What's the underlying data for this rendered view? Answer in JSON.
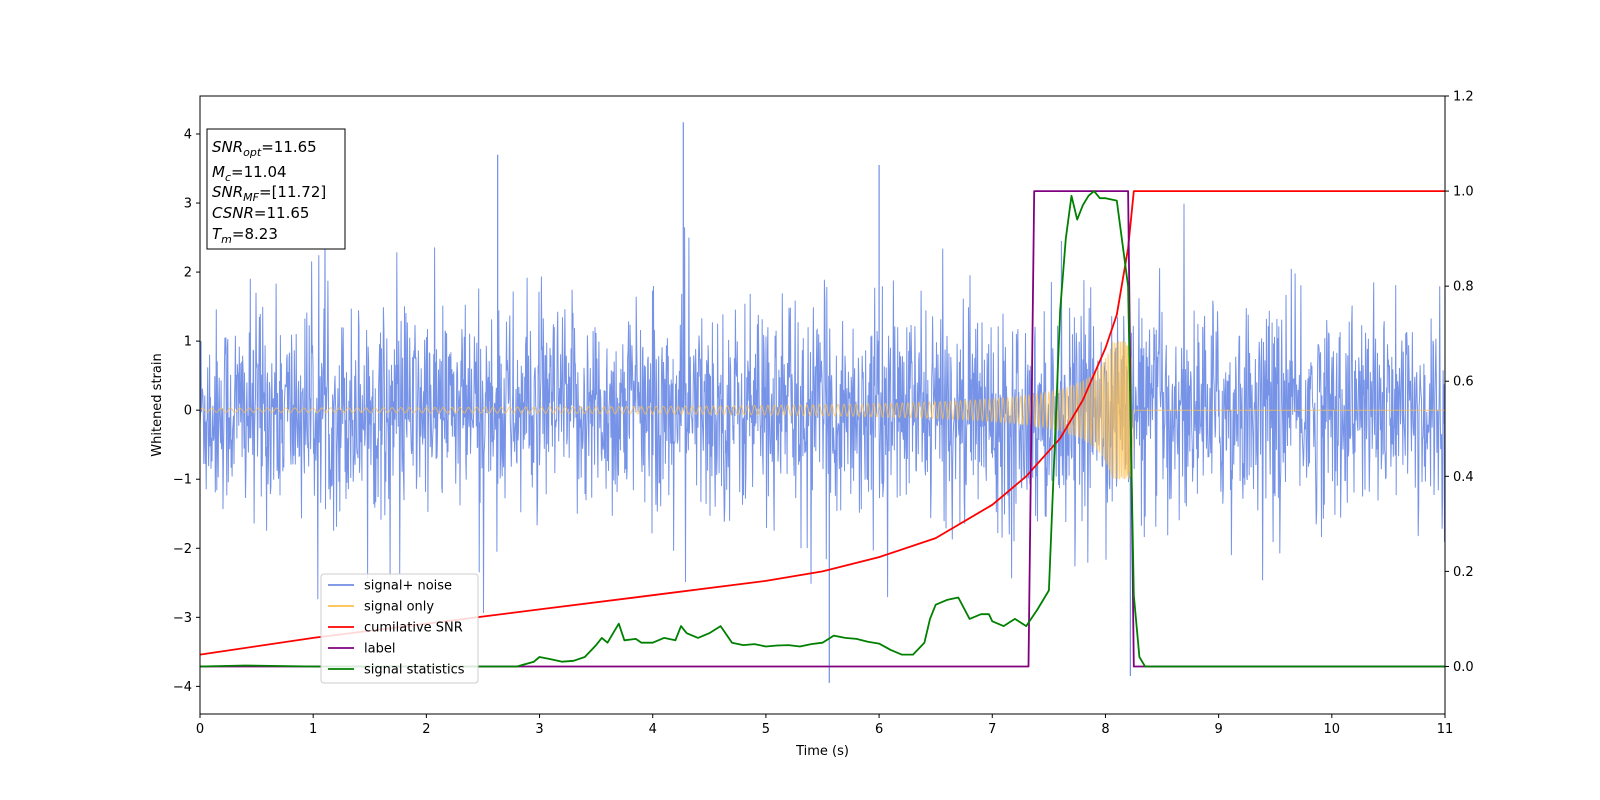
{
  "chart_data": {
    "type": "line",
    "xlabel": "Time (s)",
    "ylabel": "Whitened strain",
    "xlim": [
      0,
      11
    ],
    "ylim_left": [
      -4.4,
      4.55
    ],
    "ylim_right": [
      -0.1,
      1.2
    ],
    "x_ticks": [
      0,
      1,
      2,
      3,
      4,
      5,
      6,
      7,
      8,
      9,
      10,
      11
    ],
    "x_tick_labels": [
      "0",
      "1",
      "2",
      "3",
      "4",
      "5",
      "6",
      "7",
      "8",
      "9",
      "10",
      "11"
    ],
    "y_left_ticks": [
      -4,
      -3,
      -2,
      -1,
      0,
      1,
      2,
      3,
      4
    ],
    "y_left_tick_labels": [
      "−4",
      "−3",
      "−2",
      "−1",
      "0",
      "1",
      "2",
      "3",
      "4"
    ],
    "y_right_ticks": [
      0.0,
      0.2,
      0.4,
      0.6,
      0.8,
      1.0,
      1.2
    ],
    "y_right_tick_labels": [
      "0.0",
      "0.2",
      "0.4",
      "0.6",
      "0.8",
      "1.0",
      "1.2"
    ],
    "grid": false,
    "legend_position": "lower-left",
    "series": [
      {
        "name": "signal+ noise",
        "axis": "left",
        "color": "#6f8de6",
        "envelope": {
          "description": "dense whitened noise fluctuating roughly between -2 and 2 with spikes to about ±4",
          "typical_amplitude": 1.7,
          "max_spike": 4.17,
          "min_spike": -3.95
        }
      },
      {
        "name": "signal only",
        "axis": "left",
        "color": "#ffc04d",
        "chirp": {
          "start_time": 0,
          "merger_time": 8.23,
          "start_amplitude": 0.03,
          "peak_amplitude": 1.0
        }
      },
      {
        "name": "cumilative SNR",
        "axis": "right",
        "color": "#ff0000",
        "x": [
          0,
          1,
          2,
          3,
          4,
          5,
          5.5,
          6,
          6.5,
          7,
          7.3,
          7.6,
          7.8,
          8.0,
          8.1,
          8.2,
          8.25,
          9,
          10,
          11
        ],
        "y": [
          0.025,
          0.06,
          0.09,
          0.12,
          0.15,
          0.18,
          0.2,
          0.23,
          0.27,
          0.34,
          0.4,
          0.48,
          0.56,
          0.67,
          0.74,
          0.88,
          1.0,
          1.0,
          1.0,
          1.0
        ]
      },
      {
        "name": "label",
        "axis": "right",
        "color": "#800080",
        "x": [
          0,
          7.32,
          7.37,
          8.2,
          8.25,
          11
        ],
        "y": [
          0.0,
          0.0,
          1.0,
          1.0,
          0.0,
          0.0
        ]
      },
      {
        "name": "signal statistics",
        "axis": "right",
        "color": "#008000",
        "x": [
          0,
          0.4,
          1,
          2,
          2.8,
          2.95,
          3.0,
          3.1,
          3.2,
          3.3,
          3.4,
          3.5,
          3.55,
          3.6,
          3.65,
          3.7,
          3.75,
          3.85,
          3.9,
          4.0,
          4.1,
          4.2,
          4.25,
          4.3,
          4.4,
          4.5,
          4.6,
          4.7,
          4.8,
          4.9,
          5.0,
          5.1,
          5.2,
          5.3,
          5.4,
          5.5,
          5.6,
          5.7,
          5.8,
          5.9,
          6.0,
          6.1,
          6.2,
          6.3,
          6.4,
          6.45,
          6.5,
          6.6,
          6.7,
          6.8,
          6.9,
          6.97,
          7.0,
          7.1,
          7.2,
          7.3,
          7.4,
          7.5,
          7.6,
          7.65,
          7.7,
          7.75,
          7.8,
          7.85,
          7.9,
          7.95,
          8.0,
          8.1,
          8.2,
          8.25,
          8.3,
          8.35,
          8.5,
          9,
          10,
          11
        ],
        "y": [
          0.0,
          0.002,
          0.0,
          0.0,
          0.0,
          0.01,
          0.02,
          0.015,
          0.01,
          0.012,
          0.02,
          0.045,
          0.06,
          0.05,
          0.07,
          0.09,
          0.055,
          0.058,
          0.05,
          0.05,
          0.06,
          0.055,
          0.085,
          0.07,
          0.06,
          0.07,
          0.085,
          0.05,
          0.045,
          0.047,
          0.042,
          0.044,
          0.045,
          0.042,
          0.047,
          0.05,
          0.065,
          0.06,
          0.058,
          0.052,
          0.048,
          0.035,
          0.025,
          0.025,
          0.05,
          0.1,
          0.13,
          0.14,
          0.145,
          0.1,
          0.11,
          0.11,
          0.095,
          0.085,
          0.1,
          0.085,
          0.12,
          0.16,
          0.75,
          0.9,
          0.99,
          0.94,
          0.97,
          0.99,
          1.0,
          0.985,
          0.985,
          0.98,
          0.8,
          0.15,
          0.02,
          0.0,
          0.0,
          0.0,
          0.0,
          0.0
        ]
      }
    ],
    "annotation": {
      "lines": [
        {
          "name": "SNR",
          "sub": "opt",
          "value": "=11.65"
        },
        {
          "name": "M",
          "sub": "c",
          "value": "=11.04"
        },
        {
          "name": "SNR",
          "sub": "MF",
          "value": "=[11.72]"
        },
        {
          "name": "CSNR",
          "sub": "",
          "value": "=11.65"
        },
        {
          "name": "T",
          "sub": "m",
          "value": "=8.23"
        }
      ]
    }
  }
}
